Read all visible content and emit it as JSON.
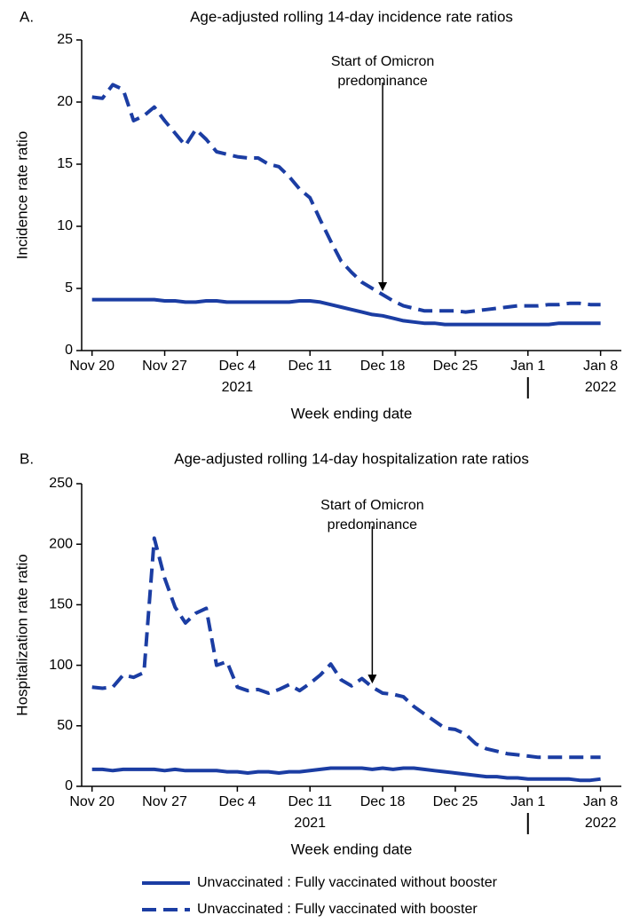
{
  "chart_data": [
    {
      "type": "line",
      "panel": "A.",
      "title": "Age-adjusted rolling 14-day incidence rate ratios",
      "x_label": "Week ending date",
      "y_label": "Incidence rate ratio",
      "x": [
        "2021-11-20",
        "2021-11-21",
        "2021-11-22",
        "2021-11-23",
        "2021-11-24",
        "2021-11-25",
        "2021-11-26",
        "2021-11-27",
        "2021-11-28",
        "2021-11-29",
        "2021-11-30",
        "2021-12-01",
        "2021-12-02",
        "2021-12-03",
        "2021-12-04",
        "2021-12-05",
        "2021-12-06",
        "2021-12-07",
        "2021-12-08",
        "2021-12-09",
        "2021-12-10",
        "2021-12-11",
        "2021-12-12",
        "2021-12-13",
        "2021-12-14",
        "2021-12-15",
        "2021-12-16",
        "2021-12-17",
        "2021-12-18",
        "2021-12-19",
        "2021-12-20",
        "2021-12-21",
        "2021-12-22",
        "2021-12-23",
        "2021-12-24",
        "2021-12-25",
        "2021-12-26",
        "2021-12-27",
        "2021-12-28",
        "2021-12-29",
        "2021-12-30",
        "2021-12-31",
        "2022-01-01",
        "2022-01-02",
        "2022-01-03",
        "2022-01-04",
        "2022-01-05",
        "2022-01-06",
        "2022-01-07",
        "2022-01-08"
      ],
      "series": [
        {
          "color": "#1b3da3",
          "dashed": false,
          "values": [
            4.1,
            4.1,
            4.1,
            4.1,
            4.1,
            4.1,
            4.1,
            4.0,
            4.0,
            3.9,
            3.9,
            4.0,
            4.0,
            3.9,
            3.9,
            3.9,
            3.9,
            3.9,
            3.9,
            3.9,
            4.0,
            4.0,
            3.9,
            3.7,
            3.5,
            3.3,
            3.1,
            2.9,
            2.8,
            2.6,
            2.4,
            2.3,
            2.2,
            2.2,
            2.1,
            2.1,
            2.1,
            2.1,
            2.1,
            2.1,
            2.1,
            2.1,
            2.1,
            2.1,
            2.1,
            2.2,
            2.2,
            2.2,
            2.2,
            2.2
          ]
        },
        {
          "color": "#1b3da3",
          "dashed": true,
          "values": [
            20.4,
            20.3,
            21.4,
            21.0,
            18.5,
            18.9,
            19.6,
            18.5,
            17.5,
            16.5,
            17.8,
            17.0,
            16.0,
            15.8,
            15.6,
            15.5,
            15.5,
            15.0,
            14.8,
            14.0,
            13.0,
            12.3,
            10.5,
            8.8,
            7.2,
            6.3,
            5.5,
            5.0,
            4.5,
            4.0,
            3.6,
            3.4,
            3.2,
            3.2,
            3.2,
            3.2,
            3.1,
            3.2,
            3.3,
            3.4,
            3.5,
            3.6,
            3.6,
            3.6,
            3.7,
            3.7,
            3.8,
            3.8,
            3.7,
            3.7
          ]
        }
      ],
      "xlim": [
        "2021-11-19",
        "2022-01-10"
      ],
      "xticks": [
        {
          "value": "2021-11-20",
          "label": "Nov 20"
        },
        {
          "value": "2021-11-27",
          "label": "Nov 27"
        },
        {
          "value": "2021-12-04",
          "label": "Dec 4"
        },
        {
          "value": "2021-12-11",
          "label": "Dec 11"
        },
        {
          "value": "2021-12-18",
          "label": "Dec 18"
        },
        {
          "value": "2021-12-25",
          "label": "Dec 25"
        },
        {
          "value": "2022-01-01",
          "label": "Jan 1"
        },
        {
          "value": "2022-01-08",
          "label": "Jan 8"
        }
      ],
      "year_labels": [
        {
          "value": "2021-12-04",
          "label": "2021"
        },
        {
          "value": "2022-01-08",
          "label": "2022"
        }
      ],
      "ylim": [
        0,
        25
      ],
      "yticks": [
        0,
        5,
        10,
        15,
        20,
        25
      ],
      "annotation": {
        "text": [
          "Start of Omicron",
          "predominance"
        ],
        "x": "2021-12-18"
      }
    },
    {
      "type": "line",
      "panel": "B.",
      "title": "Age-adjusted rolling 14-day hospitalization rate ratios",
      "x_label": "Week ending date",
      "y_label": "Hospitalization rate ratio",
      "x": [
        "2021-11-20",
        "2021-11-21",
        "2021-11-22",
        "2021-11-23",
        "2021-11-24",
        "2021-11-25",
        "2021-11-26",
        "2021-11-27",
        "2021-11-28",
        "2021-11-29",
        "2021-11-30",
        "2021-12-01",
        "2021-12-02",
        "2021-12-03",
        "2021-12-04",
        "2021-12-05",
        "2021-12-06",
        "2021-12-07",
        "2021-12-08",
        "2021-12-09",
        "2021-12-10",
        "2021-12-11",
        "2021-12-12",
        "2021-12-13",
        "2021-12-14",
        "2021-12-15",
        "2021-12-16",
        "2021-12-17",
        "2021-12-18",
        "2021-12-19",
        "2021-12-20",
        "2021-12-21",
        "2021-12-22",
        "2021-12-23",
        "2021-12-24",
        "2021-12-25",
        "2021-12-26",
        "2021-12-27",
        "2021-12-28",
        "2021-12-29",
        "2021-12-30",
        "2021-12-31",
        "2022-01-01",
        "2022-01-02",
        "2022-01-03",
        "2022-01-04",
        "2022-01-05",
        "2022-01-06",
        "2022-01-07",
        "2022-01-08"
      ],
      "series": [
        {
          "name": "Unvaccinated : Fully vaccinated without booster",
          "color": "#1b3da3",
          "dashed": false,
          "values": [
            14,
            14,
            13,
            14,
            14,
            14,
            14,
            13,
            14,
            13,
            13,
            13,
            13,
            12,
            12,
            11,
            12,
            12,
            11,
            12,
            12,
            13,
            14,
            15,
            15,
            15,
            15,
            14,
            15,
            14,
            15,
            15,
            14,
            13,
            12,
            11,
            10,
            9,
            8,
            8,
            7,
            7,
            6,
            6,
            6,
            6,
            6,
            5,
            5,
            6
          ]
        },
        {
          "name": "Unvaccinated : Fully vaccinated with booster",
          "color": "#1b3da3",
          "dashed": true,
          "values": [
            82,
            81,
            82,
            92,
            90,
            94,
            205,
            172,
            148,
            135,
            143,
            147,
            100,
            103,
            82,
            79,
            80,
            77,
            80,
            84,
            79,
            85,
            92,
            101,
            88,
            83,
            89,
            82,
            77,
            76,
            74,
            66,
            60,
            54,
            48,
            47,
            43,
            35,
            31,
            29,
            27,
            26,
            25,
            24,
            24,
            24,
            24,
            24,
            24,
            24
          ]
        }
      ],
      "xlim": [
        "2021-11-19",
        "2022-01-10"
      ],
      "xticks": [
        {
          "value": "2021-11-20",
          "label": "Nov 20"
        },
        {
          "value": "2021-11-27",
          "label": "Nov 27"
        },
        {
          "value": "2021-12-04",
          "label": "Dec 4"
        },
        {
          "value": "2021-12-11",
          "label": "Dec 11"
        },
        {
          "value": "2021-12-18",
          "label": "Dec 18"
        },
        {
          "value": "2021-12-25",
          "label": "Dec 25"
        },
        {
          "value": "2022-01-01",
          "label": "Jan 1"
        },
        {
          "value": "2022-01-08",
          "label": "Jan 8"
        }
      ],
      "year_labels": [
        {
          "value": "2021-12-11",
          "label": "2021"
        },
        {
          "value": "2022-01-08",
          "label": "2022"
        }
      ],
      "ylim": [
        0,
        250
      ],
      "yticks": [
        0,
        50,
        100,
        150,
        200,
        250
      ],
      "annotation": {
        "text": [
          "Start of Omicron",
          "predominance"
        ],
        "x": "2021-12-17"
      }
    }
  ]
}
